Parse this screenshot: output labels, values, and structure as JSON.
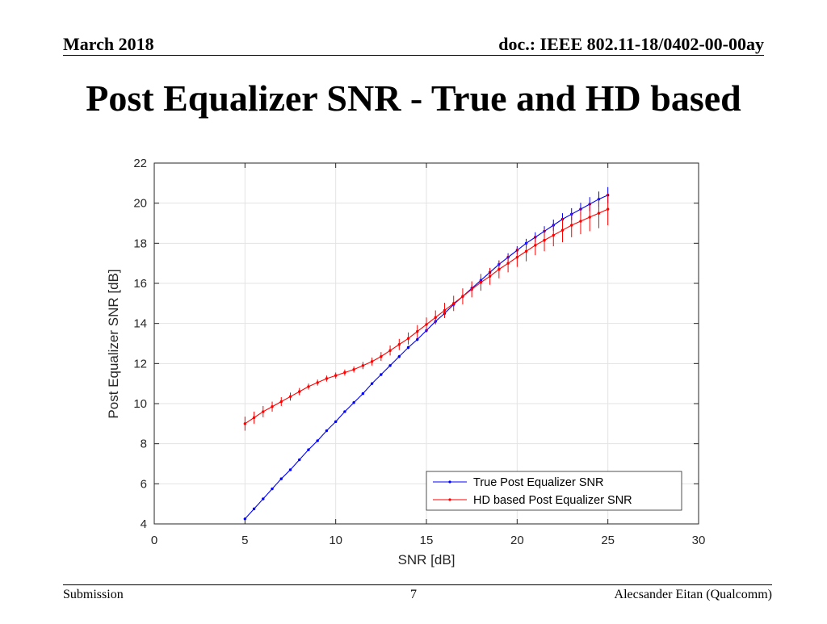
{
  "header": {
    "date": "March 2018",
    "doc_id": "doc.: IEEE 802.11-18/0402-00-00ay"
  },
  "slide": {
    "title": "Post Equalizer SNR - True and HD based"
  },
  "footer": {
    "left": "Submission",
    "page": "7",
    "author": "Alecsander Eitan (Qualcomm)"
  },
  "colors": {
    "true_series": "#0000ff",
    "hd_series": "#ff0000",
    "grid": "#e3e3e3"
  },
  "chart_data": {
    "type": "line",
    "title": "",
    "xlabel": "SNR [dB]",
    "ylabel": "Post Equalizer SNR [dB]",
    "xlim": [
      0,
      30
    ],
    "ylim": [
      4,
      22
    ],
    "xticks": [
      0,
      5,
      10,
      15,
      20,
      25,
      30
    ],
    "yticks": [
      4,
      6,
      8,
      10,
      12,
      14,
      16,
      18,
      20,
      22
    ],
    "grid": true,
    "legend_position": "bottom-right",
    "series": [
      {
        "name": "True Post Equalizer SNR",
        "color": "#0000ff",
        "x": [
          5,
          5.5,
          6,
          6.5,
          7,
          7.5,
          8,
          8.5,
          9,
          9.5,
          10,
          10.5,
          11,
          11.5,
          12,
          12.5,
          13,
          13.5,
          14,
          14.5,
          15,
          15.5,
          16,
          16.5,
          17,
          17.5,
          18,
          18.5,
          19,
          19.5,
          20,
          20.5,
          21,
          21.5,
          22,
          22.5,
          23,
          23.5,
          24,
          24.5,
          25
        ],
        "y": [
          4.25,
          4.75,
          5.25,
          5.75,
          6.25,
          6.7,
          7.2,
          7.7,
          8.15,
          8.65,
          9.1,
          9.6,
          10.05,
          10.5,
          11.0,
          11.45,
          11.9,
          12.35,
          12.8,
          13.2,
          13.65,
          14.1,
          14.5,
          14.95,
          15.35,
          15.75,
          16.15,
          16.55,
          16.95,
          17.3,
          17.65,
          18.0,
          18.3,
          18.6,
          18.9,
          19.2,
          19.45,
          19.7,
          19.95,
          20.2,
          20.4
        ],
        "err": [
          0.05,
          0.05,
          0.05,
          0.05,
          0.05,
          0.05,
          0.05,
          0.05,
          0.05,
          0.05,
          0.05,
          0.05,
          0.05,
          0.05,
          0.05,
          0.05,
          0.05,
          0.08,
          0.08,
          0.08,
          0.1,
          0.1,
          0.12,
          0.12,
          0.12,
          0.15,
          0.15,
          0.18,
          0.18,
          0.2,
          0.2,
          0.22,
          0.25,
          0.25,
          0.28,
          0.3,
          0.3,
          0.32,
          0.35,
          0.38,
          0.4
        ]
      },
      {
        "name": "HD based Post Equalizer SNR",
        "color": "#ff0000",
        "x": [
          5,
          5.5,
          6,
          6.5,
          7,
          7.5,
          8,
          8.5,
          9,
          9.5,
          10,
          10.5,
          11,
          11.5,
          12,
          12.5,
          13,
          13.5,
          14,
          14.5,
          15,
          15.5,
          16,
          16.5,
          17,
          17.5,
          18,
          18.5,
          19,
          19.5,
          20,
          20.5,
          21,
          21.5,
          22,
          22.5,
          23,
          23.5,
          24,
          24.5,
          25
        ],
        "y": [
          9.0,
          9.3,
          9.6,
          9.85,
          10.1,
          10.35,
          10.6,
          10.85,
          11.05,
          11.25,
          11.4,
          11.55,
          11.7,
          11.9,
          12.1,
          12.35,
          12.65,
          12.95,
          13.25,
          13.6,
          13.95,
          14.3,
          14.65,
          15.0,
          15.35,
          15.7,
          16.05,
          16.35,
          16.7,
          17.0,
          17.3,
          17.6,
          17.9,
          18.15,
          18.4,
          18.65,
          18.9,
          19.1,
          19.3,
          19.5,
          19.7
        ],
        "err": [
          0.35,
          0.3,
          0.28,
          0.25,
          0.22,
          0.2,
          0.18,
          0.15,
          0.15,
          0.15,
          0.15,
          0.15,
          0.15,
          0.18,
          0.2,
          0.22,
          0.25,
          0.28,
          0.3,
          0.32,
          0.35,
          0.35,
          0.38,
          0.38,
          0.4,
          0.4,
          0.42,
          0.42,
          0.45,
          0.45,
          0.48,
          0.5,
          0.5,
          0.55,
          0.55,
          0.6,
          0.6,
          0.65,
          0.7,
          0.75,
          0.8
        ]
      }
    ]
  }
}
